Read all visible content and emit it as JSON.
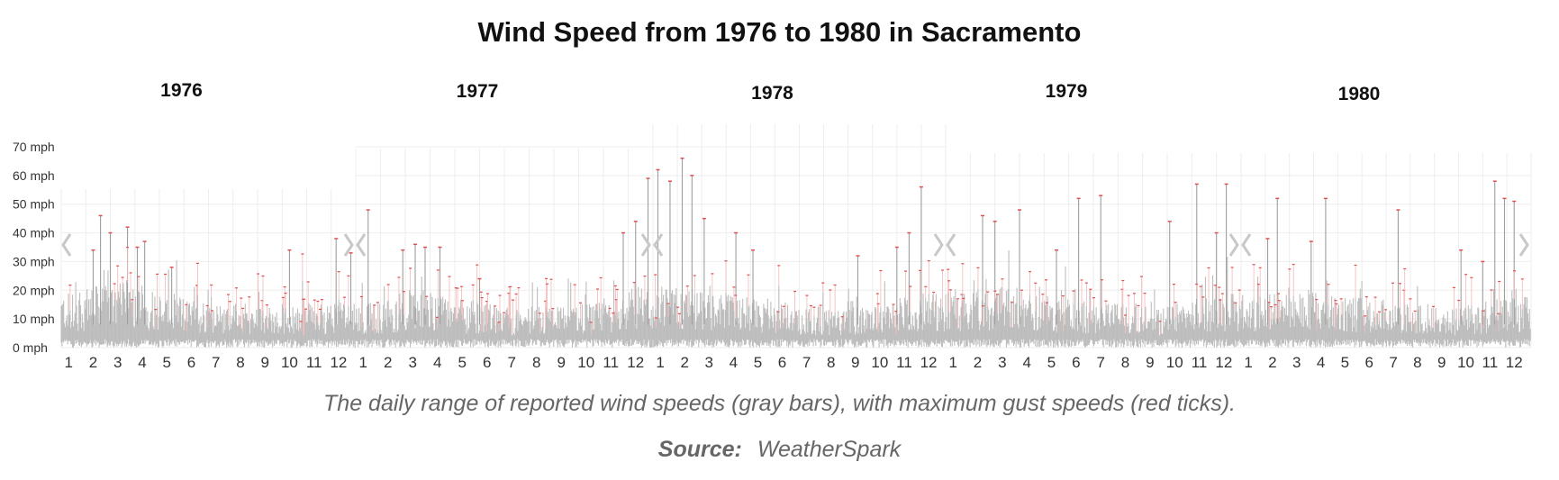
{
  "chart_data": {
    "type": "bar",
    "title": "Wind Speed from 1976 to 1980 in Sacramento",
    "caption": "The daily range of reported wind speeds (gray bars), with maximum gust speeds (red ticks).",
    "source_label": "Source:",
    "source_name": "WeatherSpark",
    "y_unit": "mph",
    "y_ticks": [
      "0 mph",
      "10 mph",
      "20 mph",
      "30 mph",
      "40 mph",
      "50 mph",
      "60 mph",
      "70 mph"
    ],
    "ylim": [
      0,
      70
    ],
    "month_ticks": [
      "1",
      "2",
      "3",
      "4",
      "5",
      "6",
      "7",
      "8",
      "9",
      "10",
      "11",
      "12"
    ],
    "grid": true,
    "colors": {
      "range_bar": "#bdbdbd",
      "gust_tick": "#e05050",
      "grid": "#eeeeee",
      "nav_arrow": "#c8c8c8"
    },
    "series": [
      {
        "name": "daily wind speed range",
        "values": "daily min-max per day"
      },
      {
        "name": "maximum gust speed",
        "values": "daily max gust"
      }
    ],
    "panels": [
      {
        "year": "1976",
        "gust_peaks": [
          {
            "month": 2.1,
            "mph": 46
          },
          {
            "month": 2.5,
            "mph": 40
          },
          {
            "month": 3.2,
            "mph": 42
          },
          {
            "month": 3.6,
            "mph": 35
          },
          {
            "month": 3.9,
            "mph": 37
          },
          {
            "month": 1.8,
            "mph": 34
          },
          {
            "month": 5.0,
            "mph": 28
          },
          {
            "month": 9.8,
            "mph": 34
          },
          {
            "month": 11.7,
            "mph": 38
          },
          {
            "month": 12.3,
            "mph": 33
          }
        ],
        "typical_max_by_month": [
          16,
          18,
          19,
          17,
          15,
          14,
          13,
          13,
          12,
          12,
          13,
          14
        ]
      },
      {
        "year": "1977",
        "gust_peaks": [
          {
            "month": 1.0,
            "mph": 48
          },
          {
            "month": 2.4,
            "mph": 34
          },
          {
            "month": 2.9,
            "mph": 36
          },
          {
            "month": 3.3,
            "mph": 35
          },
          {
            "month": 3.9,
            "mph": 35
          },
          {
            "month": 5.5,
            "mph": 24
          },
          {
            "month": 11.3,
            "mph": 40
          },
          {
            "month": 11.8,
            "mph": 44
          },
          {
            "month": 12.3,
            "mph": 59
          },
          {
            "month": 12.7,
            "mph": 62
          }
        ],
        "typical_max_by_month": [
          13,
          14,
          17,
          16,
          14,
          13,
          12,
          12,
          12,
          13,
          15,
          18
        ]
      },
      {
        "year": "1978",
        "gust_peaks": [
          {
            "month": 1.2,
            "mph": 58
          },
          {
            "month": 1.7,
            "mph": 66
          },
          {
            "month": 2.1,
            "mph": 60
          },
          {
            "month": 2.6,
            "mph": 45
          },
          {
            "month": 3.9,
            "mph": 40
          },
          {
            "month": 4.6,
            "mph": 34
          },
          {
            "month": 8.9,
            "mph": 32
          },
          {
            "month": 10.5,
            "mph": 35
          },
          {
            "month": 11.0,
            "mph": 40
          },
          {
            "month": 11.5,
            "mph": 56
          }
        ],
        "typical_max_by_month": [
          18,
          17,
          16,
          15,
          14,
          13,
          12,
          12,
          12,
          13,
          15,
          16
        ]
      },
      {
        "year": "1979",
        "gust_peaks": [
          {
            "month": 2.0,
            "mph": 46
          },
          {
            "month": 2.5,
            "mph": 44
          },
          {
            "month": 3.5,
            "mph": 48
          },
          {
            "month": 5.0,
            "mph": 34
          },
          {
            "month": 5.9,
            "mph": 52
          },
          {
            "month": 6.8,
            "mph": 53
          },
          {
            "month": 9.6,
            "mph": 44
          },
          {
            "month": 10.7,
            "mph": 57
          },
          {
            "month": 11.5,
            "mph": 40
          },
          {
            "month": 11.9,
            "mph": 57
          }
        ],
        "typical_max_by_month": [
          16,
          17,
          18,
          16,
          15,
          14,
          13,
          13,
          12,
          13,
          15,
          16
        ]
      },
      {
        "year": "1980",
        "gust_peaks": [
          {
            "month": 2.0,
            "mph": 52
          },
          {
            "month": 1.6,
            "mph": 38
          },
          {
            "month": 3.4,
            "mph": 37
          },
          {
            "month": 4.0,
            "mph": 52
          },
          {
            "month": 7.0,
            "mph": 48
          },
          {
            "month": 9.6,
            "mph": 34
          },
          {
            "month": 10.5,
            "mph": 30
          },
          {
            "month": 11.0,
            "mph": 58
          },
          {
            "month": 11.4,
            "mph": 52
          },
          {
            "month": 11.8,
            "mph": 51
          }
        ],
        "typical_max_by_month": [
          15,
          16,
          17,
          16,
          15,
          14,
          13,
          13,
          12,
          13,
          14,
          15
        ]
      }
    ]
  }
}
